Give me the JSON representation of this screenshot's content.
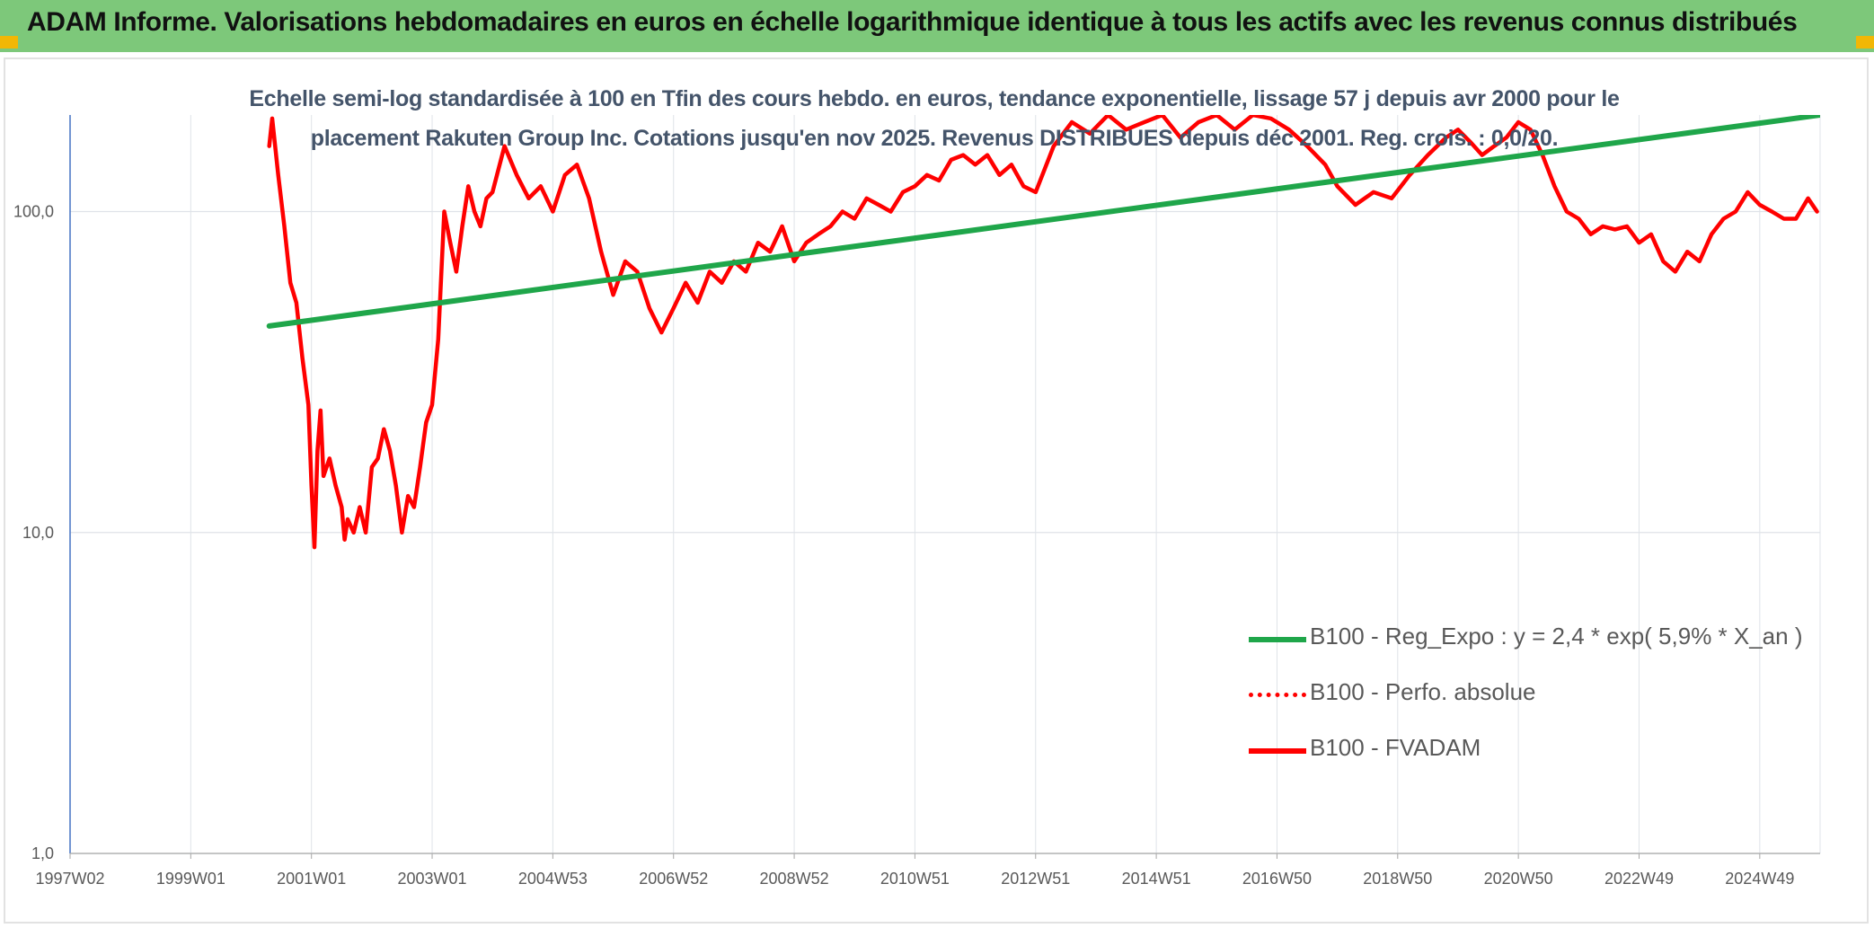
{
  "banner": {
    "title": "ADAM Informe. Valorisations hebdomadaires en euros en échelle logarithmique identique à tous les actifs avec les revenus connus distribués",
    "color": "#7dc87a"
  },
  "chart_data": {
    "type": "line",
    "title_lines": [
      "Echelle semi-log standardisée à 100 en Tfin des cours hebdo. en euros, tendance exponentielle, lissage 57 j depuis avr 2000 pour le",
      "placement Rakuten Group Inc. Cotations jusqu'en nov 2025. Revenus DISTRIBUES depuis déc 2001. Reg. crois. : 0,0/20."
    ],
    "y_scale": "log",
    "ylim": [
      1,
      200
    ],
    "y_ticks": [
      {
        "value": 1,
        "label": "1,0"
      },
      {
        "value": 10,
        "label": "10,0"
      },
      {
        "value": 100,
        "label": "100,0"
      }
    ],
    "xlim": [
      1997.0,
      2026.0
    ],
    "x_ticks": [
      {
        "value": 1997.0,
        "label": "1997W02"
      },
      {
        "value": 1999.0,
        "label": "1999W01"
      },
      {
        "value": 2001.0,
        "label": "2001W01"
      },
      {
        "value": 2003.0,
        "label": "2003W01"
      },
      {
        "value": 2005.0,
        "label": "2004W53"
      },
      {
        "value": 2007.0,
        "label": "2006W52"
      },
      {
        "value": 2009.0,
        "label": "2008W52"
      },
      {
        "value": 2011.0,
        "label": "2010W51"
      },
      {
        "value": 2013.0,
        "label": "2012W51"
      },
      {
        "value": 2015.0,
        "label": "2014W51"
      },
      {
        "value": 2017.0,
        "label": "2016W50"
      },
      {
        "value": 2019.0,
        "label": "2018W50"
      },
      {
        "value": 2021.0,
        "label": "2020W50"
      },
      {
        "value": 2023.0,
        "label": "2022W49"
      },
      {
        "value": 2025.0,
        "label": "2024W49"
      }
    ],
    "grid": true,
    "legend_position": "bottom-right",
    "series": [
      {
        "name": "B100 - Reg_Expo : y = 2,4 * exp( 5,9% *  X_an )",
        "color": "#1fa64a",
        "style": "solid",
        "x": [
          2000.3,
          2026.0
        ],
        "y": [
          44,
          200
        ]
      },
      {
        "name": "B100 - Perfo. absolue",
        "color": "#ff0000",
        "style": "dotted",
        "x": [],
        "y": []
      },
      {
        "name": "B100 - FVADAM",
        "color": "#ff0000",
        "style": "solid",
        "x": [
          2000.3,
          2000.35,
          2000.45,
          2000.55,
          2000.65,
          2000.75,
          2000.85,
          2000.95,
          2001.0,
          2001.05,
          2001.1,
          2001.15,
          2001.2,
          2001.3,
          2001.4,
          2001.5,
          2001.55,
          2001.6,
          2001.7,
          2001.8,
          2001.9,
          2002.0,
          2002.1,
          2002.2,
          2002.3,
          2002.4,
          2002.5,
          2002.6,
          2002.7,
          2002.8,
          2002.9,
          2003.0,
          2003.1,
          2003.2,
          2003.3,
          2003.4,
          2003.5,
          2003.6,
          2003.7,
          2003.8,
          2003.9,
          2004.0,
          2004.2,
          2004.4,
          2004.6,
          2004.8,
          2005.0,
          2005.2,
          2005.4,
          2005.6,
          2005.8,
          2006.0,
          2006.2,
          2006.4,
          2006.6,
          2006.8,
          2007.0,
          2007.2,
          2007.4,
          2007.6,
          2007.8,
          2008.0,
          2008.2,
          2008.4,
          2008.6,
          2008.8,
          2009.0,
          2009.2,
          2009.4,
          2009.6,
          2009.8,
          2010.0,
          2010.2,
          2010.4,
          2010.6,
          2010.8,
          2011.0,
          2011.2,
          2011.4,
          2011.6,
          2011.8,
          2012.0,
          2012.2,
          2012.4,
          2012.6,
          2012.8,
          2013.0,
          2013.3,
          2013.6,
          2013.9,
          2014.2,
          2014.5,
          2014.8,
          2015.1,
          2015.4,
          2015.7,
          2016.0,
          2016.3,
          2016.6,
          2016.9,
          2017.2,
          2017.5,
          2017.8,
          2018.0,
          2018.3,
          2018.6,
          2018.9,
          2019.2,
          2019.5,
          2019.8,
          2020.0,
          2020.2,
          2020.4,
          2020.6,
          2020.8,
          2021.0,
          2021.2,
          2021.4,
          2021.6,
          2021.8,
          2022.0,
          2022.2,
          2022.4,
          2022.6,
          2022.8,
          2023.0,
          2023.2,
          2023.4,
          2023.6,
          2023.8,
          2024.0,
          2024.2,
          2024.4,
          2024.6,
          2024.8,
          2025.0,
          2025.2,
          2025.4,
          2025.6,
          2025.8,
          2025.95
        ],
        "y": [
          160,
          195,
          130,
          90,
          60,
          52,
          35,
          25,
          14,
          9,
          18,
          24,
          15,
          17,
          14,
          12,
          9.5,
          11,
          10,
          12,
          10,
          16,
          17,
          21,
          18,
          14,
          10,
          13,
          12,
          16,
          22,
          25,
          40,
          100,
          80,
          65,
          90,
          120,
          100,
          90,
          110,
          115,
          160,
          130,
          110,
          120,
          100,
          130,
          140,
          110,
          75,
          55,
          70,
          65,
          50,
          42,
          50,
          60,
          52,
          65,
          60,
          70,
          65,
          80,
          75,
          90,
          70,
          80,
          85,
          90,
          100,
          95,
          110,
          105,
          100,
          115,
          120,
          130,
          125,
          145,
          150,
          140,
          150,
          130,
          140,
          120,
          115,
          160,
          190,
          175,
          200,
          180,
          190,
          200,
          170,
          190,
          200,
          180,
          200,
          195,
          180,
          160,
          140,
          120,
          105,
          115,
          110,
          130,
          150,
          170,
          180,
          165,
          150,
          160,
          170,
          190,
          180,
          150,
          120,
          100,
          95,
          85,
          90,
          88,
          90,
          80,
          85,
          70,
          65,
          75,
          70,
          85,
          95,
          100,
          115,
          105,
          100,
          95,
          95,
          110,
          100
        ]
      }
    ]
  }
}
